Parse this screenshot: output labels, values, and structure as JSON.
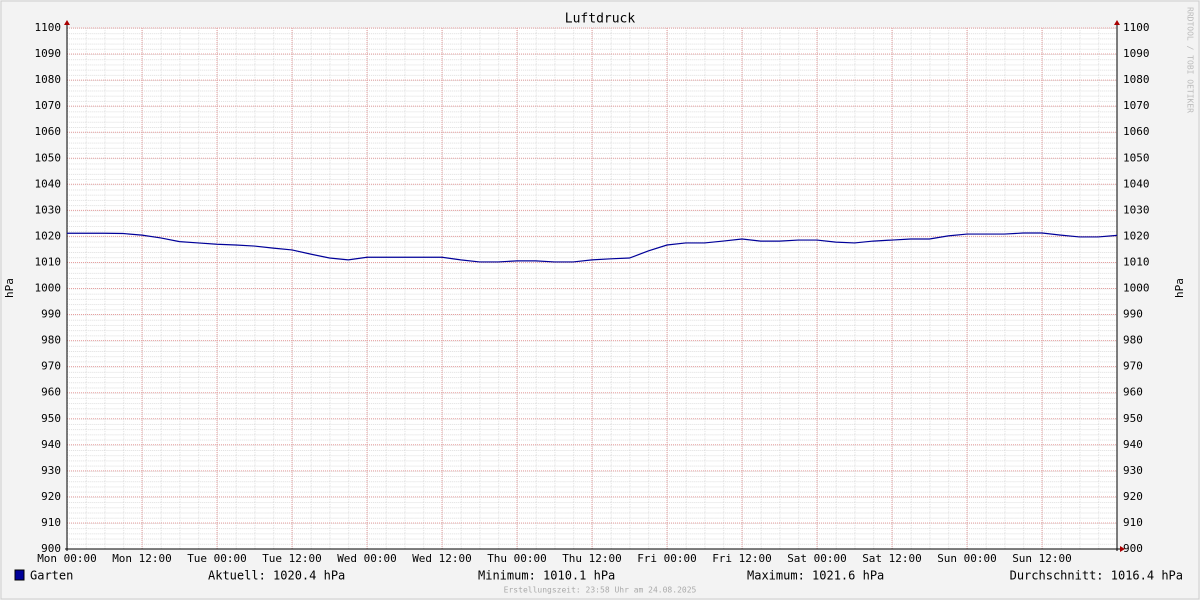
{
  "chart_data": {
    "type": "line",
    "title": "Luftdruck",
    "y_label": "hPa",
    "watermark": "RRDTOOL / TOBI OETIKER",
    "footer": "Erstellungszeit: 23:58 Uhr am 24.08.2025",
    "stats": [
      "Aktuell: 1020.4 hPa",
      "Minimum: 1010.1 hPa",
      "Maximum: 1021.6 hPa",
      "Durchschnitt: 1016.4 hPa"
    ],
    "xlim": [
      0,
      168
    ],
    "xticks": [
      {
        "value": 0,
        "label": "Mon 00:00"
      },
      {
        "value": 12,
        "label": "Mon 12:00"
      },
      {
        "value": 24,
        "label": "Tue 00:00"
      },
      {
        "value": 36,
        "label": "Tue 12:00"
      },
      {
        "value": 48,
        "label": "Wed 00:00"
      },
      {
        "value": 60,
        "label": "Wed 12:00"
      },
      {
        "value": 72,
        "label": "Thu 00:00"
      },
      {
        "value": 84,
        "label": "Thu 12:00"
      },
      {
        "value": 96,
        "label": "Fri 00:00"
      },
      {
        "value": 108,
        "label": "Fri 12:00"
      },
      {
        "value": 120,
        "label": "Sat 00:00"
      },
      {
        "value": 132,
        "label": "Sat 12:00"
      },
      {
        "value": 144,
        "label": "Sun 00:00"
      },
      {
        "value": 156,
        "label": "Sun 12:00"
      }
    ],
    "ylim": [
      900,
      1100
    ],
    "yticks": [
      900,
      910,
      920,
      930,
      940,
      950,
      960,
      970,
      980,
      990,
      1000,
      1010,
      1020,
      1030,
      1040,
      1050,
      1060,
      1070,
      1080,
      1090,
      1100
    ],
    "grid": true,
    "x": [
      0,
      3,
      6,
      9,
      12,
      15,
      18,
      21,
      24,
      27,
      30,
      33,
      36,
      39,
      42,
      45,
      48,
      51,
      54,
      57,
      60,
      63,
      66,
      69,
      72,
      75,
      78,
      81,
      84,
      87,
      90,
      93,
      96,
      99,
      102,
      105,
      108,
      111,
      114,
      117,
      120,
      123,
      126,
      129,
      132,
      135,
      138,
      141,
      144,
      147,
      150,
      153,
      156,
      159,
      162,
      165,
      168
    ],
    "series": [
      {
        "name": "Garten",
        "color": "#000099",
        "values": [
          1021.2,
          1021.2,
          1021.2,
          1021.1,
          1020.5,
          1019.4,
          1018,
          1017.5,
          1017,
          1016.7,
          1016.3,
          1015.5,
          1014.8,
          1013.2,
          1011.7,
          1011,
          1012,
          1012,
          1012,
          1012,
          1012,
          1011,
          1010.2,
          1010.2,
          1010.6,
          1010.6,
          1010.2,
          1010.2,
          1011,
          1011.4,
          1011.7,
          1014.4,
          1016.7,
          1017.5,
          1017.5,
          1018.2,
          1019,
          1018.2,
          1018.2,
          1018.6,
          1018.6,
          1017.8,
          1017.5,
          1018.2,
          1018.6,
          1019,
          1019,
          1020.2,
          1020.9,
          1020.9,
          1020.9,
          1021.3,
          1021.3,
          1020.5,
          1019.8,
          1019.8,
          1020.4
        ]
      }
    ]
  }
}
